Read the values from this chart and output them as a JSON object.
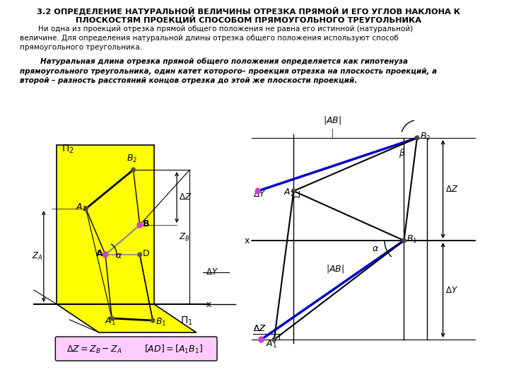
{
  "title_line1": "3.2 ОПРЕДЕЛЕНИЕ НАТУРАЛЬНОЙ ВЕЛИЧИНЫ ОТРЕЗКА ПРЯМОЙ И ЕГО УГЛОВ НАКЛОНА К",
  "title_line2": "ПЛОСКОСТЯМ ПРОЕКЦИЙ СПОСОБОМ ПРЯМОУГОЛЬНОГО ТРЕУГОЛЬНИКА",
  "para1": "        Ни одна из проекций отрезка прямой общего положения не равна его истинной (натуральной)\nвеличине. Для определения натуральной длины отрезка общего положения используют способ\nпрямоугольного треугольника.",
  "para2": "        Натуральная длина отрезка прямой общего положения определяется как гипотенуза\nпрямоугольного треугольника, один катет которого– проекция отрезка на плоскость проекций, а\nвторой – разность расстояний концов отрезка до этой же плоскости проекций.",
  "bg_color": "#ffffff",
  "yellow": "#ffff00",
  "pink_box": "#ffccff",
  "magenta": "#cc44cc",
  "blue_seg": "#0000cc",
  "gray": "#888888"
}
